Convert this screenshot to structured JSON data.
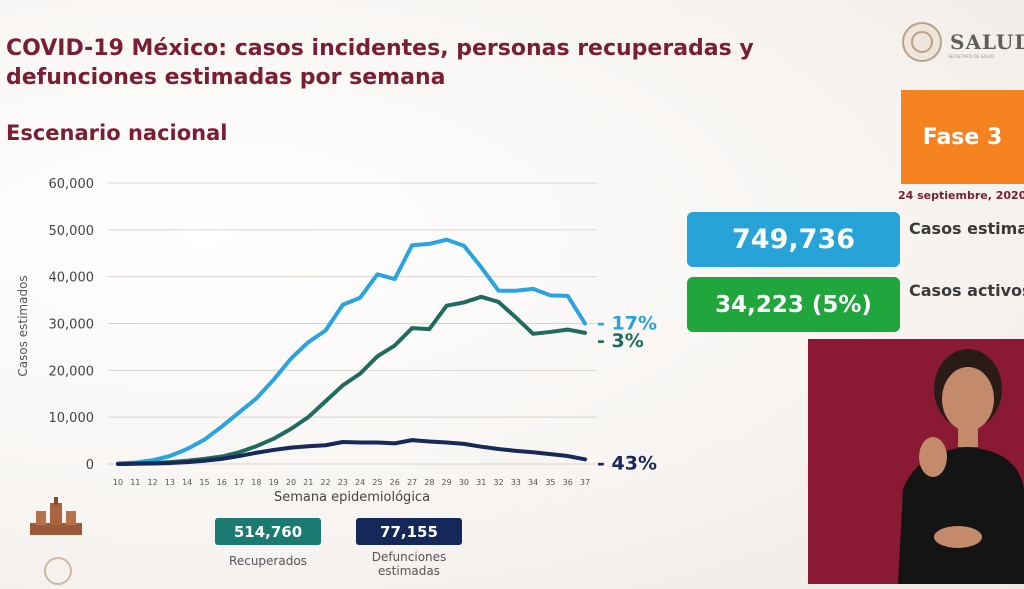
{
  "header": {
    "title": "COVID-19 México: casos incidentes, personas recuperadas y defunciones estimadas por semana",
    "subtitle": "Escenario nacional",
    "logo_text": "SALUD",
    "logo_tagline": "SECRETARÍA DE SALUD"
  },
  "phase": {
    "label": "Fase 3",
    "date": "24 septiembre, 2020"
  },
  "stats": {
    "casos": {
      "value": "749,736",
      "label": "Casos estimados"
    },
    "activos": {
      "value": "34,223 (5%)",
      "label": "Casos activos estimados"
    }
  },
  "summary": {
    "recuperados": {
      "value": "514,760",
      "label": "Recuperados"
    },
    "defunciones": {
      "value": "77,155",
      "label": "Defunciones estimadas"
    }
  },
  "colors": {
    "casos": "#2aa3df",
    "recuperados": "#1f6b5e",
    "defunciones": "#17285a",
    "title": "#7a1e35",
    "fase": "#f4821f"
  },
  "chart_data": {
    "type": "line",
    "xlabel": "Semana epidemiológica",
    "ylabel": "Casos estimados",
    "ylim": [
      0,
      60000
    ],
    "yticks": [
      0,
      10000,
      20000,
      30000,
      40000,
      50000,
      60000
    ],
    "ytick_labels": [
      "0",
      "10,000",
      "20,000",
      "30,000",
      "40,000",
      "50,000",
      "60,000"
    ],
    "grid": true,
    "x": [
      10,
      11,
      12,
      13,
      14,
      15,
      16,
      17,
      18,
      19,
      20,
      21,
      22,
      23,
      24,
      25,
      26,
      27,
      28,
      29,
      30,
      31,
      32,
      33,
      34,
      35,
      36,
      37
    ],
    "series": [
      {
        "key": "casos",
        "color": "#2aa3df",
        "end_label": "- 17%",
        "values": [
          100,
          300,
          800,
          1700,
          3200,
          5200,
          8000,
          11000,
          14000,
          18000,
          22500,
          26000,
          28500,
          34000,
          35500,
          40500,
          39500,
          46700,
          47000,
          47900,
          46600,
          42000,
          37000,
          37000,
          37400,
          36000,
          35900,
          30000
        ]
      },
      {
        "key": "recuperados",
        "color": "#1f6b5e",
        "end_label": "- 3%",
        "values": [
          0,
          100,
          200,
          400,
          700,
          1100,
          1600,
          2500,
          3800,
          5400,
          7500,
          10000,
          13400,
          16800,
          19300,
          23000,
          25300,
          29000,
          28800,
          33800,
          34500,
          35700,
          34600,
          31300,
          27800,
          28200,
          28700,
          28000
        ]
      },
      {
        "key": "defunciones",
        "color": "#17285a",
        "end_label": "- 43%",
        "values": [
          0,
          50,
          100,
          200,
          400,
          700,
          1100,
          1700,
          2400,
          3000,
          3500,
          3800,
          4000,
          4700,
          4600,
          4600,
          4400,
          5100,
          4800,
          4600,
          4300,
          3700,
          3200,
          2800,
          2500,
          2100,
          1700,
          1000
        ]
      }
    ]
  }
}
